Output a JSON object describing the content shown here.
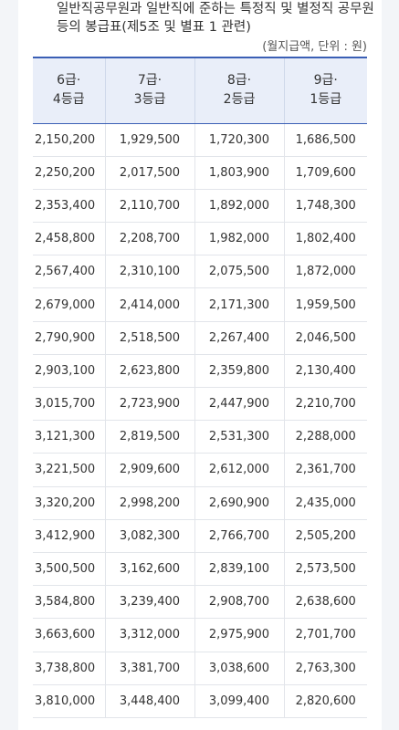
{
  "title": "일반직공무원과 일반직에 준하는 특정직 및 별정직 공무원 등의 봉급표(제5조 및 별표 1 관련)",
  "unit_note": "(월지급액, 단위 : 원)",
  "table": {
    "headers": [
      {
        "line1": "6급·",
        "line2": "4등급"
      },
      {
        "line1": "7급·",
        "line2": "3등급"
      },
      {
        "line1": "8급·",
        "line2": "2등급"
      },
      {
        "line1": "9급·",
        "line2": "1등급"
      }
    ],
    "rows": [
      [
        "2,150,200",
        "1,929,500",
        "1,720,300",
        "1,686,500"
      ],
      [
        "2,250,200",
        "2,017,500",
        "1,803,900",
        "1,709,600"
      ],
      [
        "2,353,400",
        "2,110,700",
        "1,892,000",
        "1,748,300"
      ],
      [
        "2,458,800",
        "2,208,700",
        "1,982,000",
        "1,802,400"
      ],
      [
        "2,567,400",
        "2,310,100",
        "2,075,500",
        "1,872,000"
      ],
      [
        "2,679,000",
        "2,414,000",
        "2,171,300",
        "1,959,500"
      ],
      [
        "2,790,900",
        "2,518,500",
        "2,267,400",
        "2,046,500"
      ],
      [
        "2,903,100",
        "2,623,800",
        "2,359,800",
        "2,130,400"
      ],
      [
        "3,015,700",
        "2,723,900",
        "2,447,900",
        "2,210,700"
      ],
      [
        "3,121,300",
        "2,819,500",
        "2,531,300",
        "2,288,000"
      ],
      [
        "3,221,500",
        "2,909,600",
        "2,612,000",
        "2,361,700"
      ],
      [
        "3,320,200",
        "2,998,200",
        "2,690,900",
        "2,435,000"
      ],
      [
        "3,412,900",
        "3,082,300",
        "2,766,700",
        "2,505,200"
      ],
      [
        "3,500,500",
        "3,162,600",
        "2,839,100",
        "2,573,500"
      ],
      [
        "3,584,800",
        "3,239,400",
        "2,908,700",
        "2,638,600"
      ],
      [
        "3,663,600",
        "3,312,000",
        "2,975,900",
        "2,701,700"
      ],
      [
        "3,738,800",
        "3,381,700",
        "3,038,600",
        "2,763,300"
      ],
      [
        "3,810,000",
        "3,448,400",
        "3,099,400",
        "2,820,600"
      ]
    ]
  }
}
